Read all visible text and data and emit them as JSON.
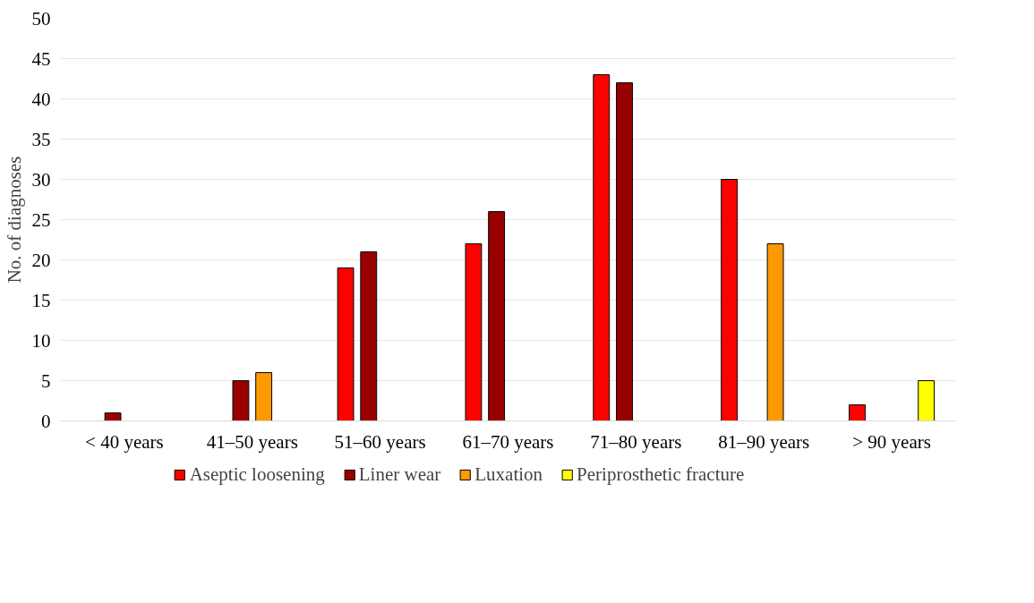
{
  "chart_data": {
    "type": "bar",
    "ylabel": "No. of diagnoses",
    "categories": [
      "< 40 years",
      "41–50 years",
      "51–60 years",
      "61–70 years",
      "71–80 years",
      "81–90 years",
      "> 90 years"
    ],
    "series": [
      {
        "name": "Aseptic loosening",
        "color": "#ff0000",
        "values": [
          null,
          null,
          19,
          22,
          43,
          30,
          2
        ]
      },
      {
        "name": "Liner wear",
        "color": "#990000",
        "values": [
          1,
          5,
          21,
          26,
          42,
          null,
          null
        ]
      },
      {
        "name": "Luxation",
        "color": "#ff9900",
        "values": [
          null,
          6,
          null,
          null,
          null,
          22,
          null
        ]
      },
      {
        "name": "Periprosthetic fracture",
        "color": "#ffff00",
        "values": [
          null,
          null,
          null,
          null,
          null,
          null,
          5
        ]
      }
    ],
    "ylim": [
      0,
      50
    ],
    "yticks": [
      0,
      5,
      10,
      15,
      20,
      25,
      30,
      35,
      40,
      45,
      50
    ],
    "grid": "y",
    "legend": "bottom"
  }
}
